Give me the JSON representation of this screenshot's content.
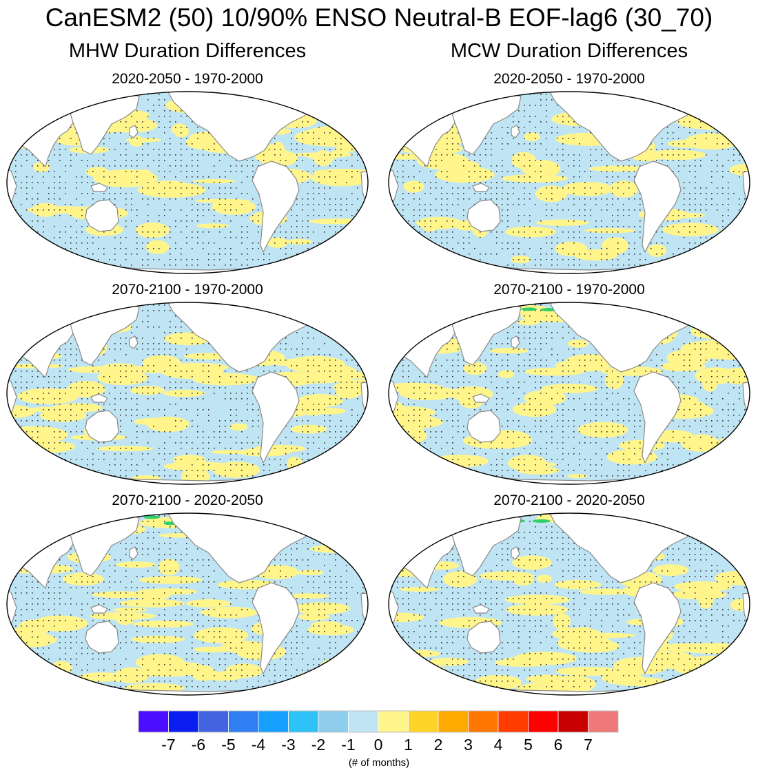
{
  "title": "CanESM2 (50) 10/90% ENSO Neutral-B EOF-lag6 (30_70)",
  "columns": [
    {
      "title": "MHW Duration Differences"
    },
    {
      "title": "MCW Duration Differences"
    }
  ],
  "panels": [
    {
      "column": "MHW",
      "period": "2020-2050 - 1970-2000"
    },
    {
      "column": "MCW",
      "period": "2020-2050 - 1970-2000"
    },
    {
      "column": "MHW",
      "period": "2070-2100 - 1970-2000"
    },
    {
      "column": "MCW",
      "period": "2070-2100 - 1970-2000"
    },
    {
      "column": "MHW",
      "period": "2070-2100 - 2020-2050"
    },
    {
      "column": "MCW",
      "period": "2070-2100 - 2020-2050"
    }
  ],
  "colorbar": {
    "colors": [
      "#4b0eff",
      "#0a1ef0",
      "#4264e0",
      "#2f7ff2",
      "#15a0ff",
      "#2ec3f8",
      "#8ecdee",
      "#bfe4f4",
      "#fff58a",
      "#ffd428",
      "#ffaa00",
      "#ff7700",
      "#ff3b00",
      "#ff0000",
      "#c80000",
      "#f07878"
    ],
    "labels": [
      "-7",
      "-6",
      "-5",
      "-4",
      "-3",
      "-2",
      "-1",
      "0",
      "1",
      "2",
      "3",
      "4",
      "5",
      "6",
      "7"
    ],
    "units": "(# of months)"
  },
  "map_colors": {
    "ocean_negative": "#bfe4f4",
    "ocean_positive": "#fff58a",
    "significance_dots": "#333333",
    "land": "#ffffff",
    "coastline": "#888888",
    "border": "#000000",
    "highlight": "#2fd06a"
  }
}
